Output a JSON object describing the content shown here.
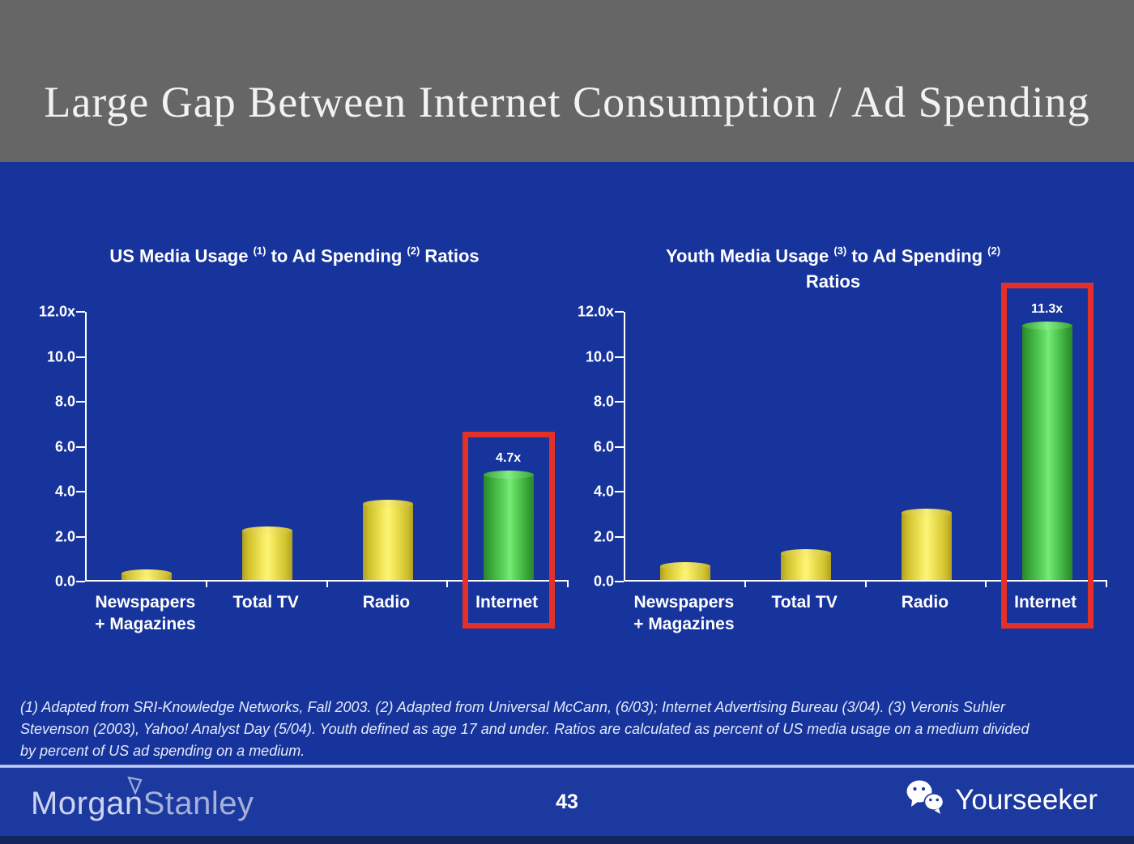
{
  "header": {
    "title": "Large Gap Between Internet Consumption / Ad Spending"
  },
  "chart_data": [
    {
      "type": "bar",
      "title": "US Media Usage (1) to Ad Spending (2) Ratios",
      "title_segments": [
        {
          "text": "US Media Usage "
        },
        {
          "sup": "(1)"
        },
        {
          "text": " to Ad Spending "
        },
        {
          "sup": "(2)"
        },
        {
          "text": " Ratios"
        }
      ],
      "categories": [
        "Newspapers\n+ Magazines",
        "Total TV",
        "Radio",
        "Internet"
      ],
      "values": [
        0.3,
        2.2,
        3.4,
        4.7
      ],
      "bar_colors": [
        "yellow",
        "yellow",
        "yellow",
        "green"
      ],
      "highlight": {
        "index": 3,
        "label": "4.7x"
      },
      "xlabel": "",
      "ylabel": "",
      "ylim": [
        0,
        12
      ],
      "grid": false,
      "yticks": [
        {
          "label": "12.0x",
          "value": 12
        },
        {
          "label": "10.0",
          "value": 10
        },
        {
          "label": "8.0",
          "value": 8
        },
        {
          "label": "6.0",
          "value": 6
        },
        {
          "label": "4.0",
          "value": 4
        },
        {
          "label": "2.0",
          "value": 2
        },
        {
          "label": "0.0",
          "value": 0
        }
      ]
    },
    {
      "type": "bar",
      "title": "Youth Media Usage (3) to Ad Spending (2) Ratios",
      "title_segments": [
        {
          "text": "Youth Media Usage "
        },
        {
          "sup": "(3)"
        },
        {
          "text": " to Ad Spending "
        },
        {
          "sup": "(2)"
        },
        {
          "br": true
        },
        {
          "text": "Ratios"
        }
      ],
      "categories": [
        "Newspapers\n+ Magazines",
        "Total TV",
        "Radio",
        "Internet"
      ],
      "values": [
        0.6,
        1.2,
        3.0,
        11.3
      ],
      "bar_colors": [
        "yellow",
        "yellow",
        "yellow",
        "green"
      ],
      "highlight": {
        "index": 3,
        "label": "11.3x"
      },
      "xlabel": "",
      "ylabel": "",
      "ylim": [
        0,
        12
      ],
      "grid": false,
      "yticks": [
        {
          "label": "12.0x",
          "value": 12
        },
        {
          "label": "10.0",
          "value": 10
        },
        {
          "label": "8.0",
          "value": 8
        },
        {
          "label": "6.0",
          "value": 6
        },
        {
          "label": "4.0",
          "value": 4
        },
        {
          "label": "2.0",
          "value": 2
        },
        {
          "label": "0.0",
          "value": 0
        }
      ]
    }
  ],
  "footnote": {
    "lines": [
      "(1) Adapted from SRI-Knowledge Networks, Fall 2003.  (2) Adapted from Universal McCann, (6/03); Internet Advertising Bureau (3/04). (3) Veronis Suhler",
      "Stevenson (2003), Yahoo! Analyst Day (5/04).  Youth defined as age 17 and under.  Ratios are calculated as percent of US media usage on a medium divided",
      "by percent of US ad spending on a medium."
    ]
  },
  "footer": {
    "brand": {
      "part1": "Morgan",
      "part2": "Stanley"
    },
    "page_number": "43",
    "watermark": "Yourseeker"
  },
  "colors": {
    "header_bg": "#666666",
    "slide_bg": "#17349d",
    "bar_yellow": "#e9d93c",
    "bar_green": "#4fca45",
    "highlight_red": "#e23128",
    "separator": "#a9b8ec",
    "text": "#ffffff"
  }
}
